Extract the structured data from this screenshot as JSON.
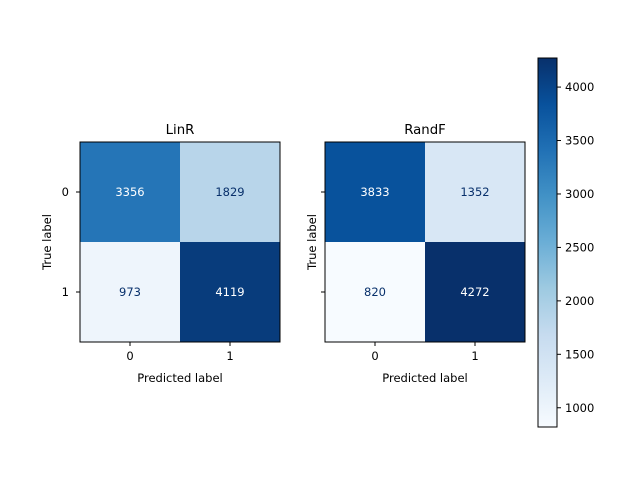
{
  "chart_data": [
    {
      "type": "heatmap",
      "title": "LinR",
      "xlabel": "Predicted label",
      "ylabel": "True label",
      "x_categories": [
        "0",
        "1"
      ],
      "y_categories": [
        "0",
        "1"
      ],
      "matrix": [
        [
          3356,
          1829
        ],
        [
          973,
          4119
        ]
      ],
      "colormap": "Blues"
    },
    {
      "type": "heatmap",
      "title": "RandF",
      "xlabel": "Predicted label",
      "ylabel": "True label",
      "x_categories": [
        "0",
        "1"
      ],
      "y_categories": [
        "0",
        "1"
      ],
      "matrix": [
        [
          3833,
          1352
        ],
        [
          820,
          4272
        ]
      ],
      "colormap": "Blues"
    }
  ],
  "colorbar": {
    "range": [
      820,
      4272
    ],
    "ticks": [
      1000,
      1500,
      2000,
      2500,
      3000,
      3500,
      4000
    ],
    "tick_labels": [
      "1000",
      "1500",
      "2000",
      "2500",
      "3000",
      "3500",
      "4000"
    ],
    "colors": [
      "#f7fbff",
      "#deebf7",
      "#c6dbef",
      "#9ecae1",
      "#6baed6",
      "#4292c6",
      "#2171b5",
      "#08519c",
      "#08306b"
    ]
  }
}
